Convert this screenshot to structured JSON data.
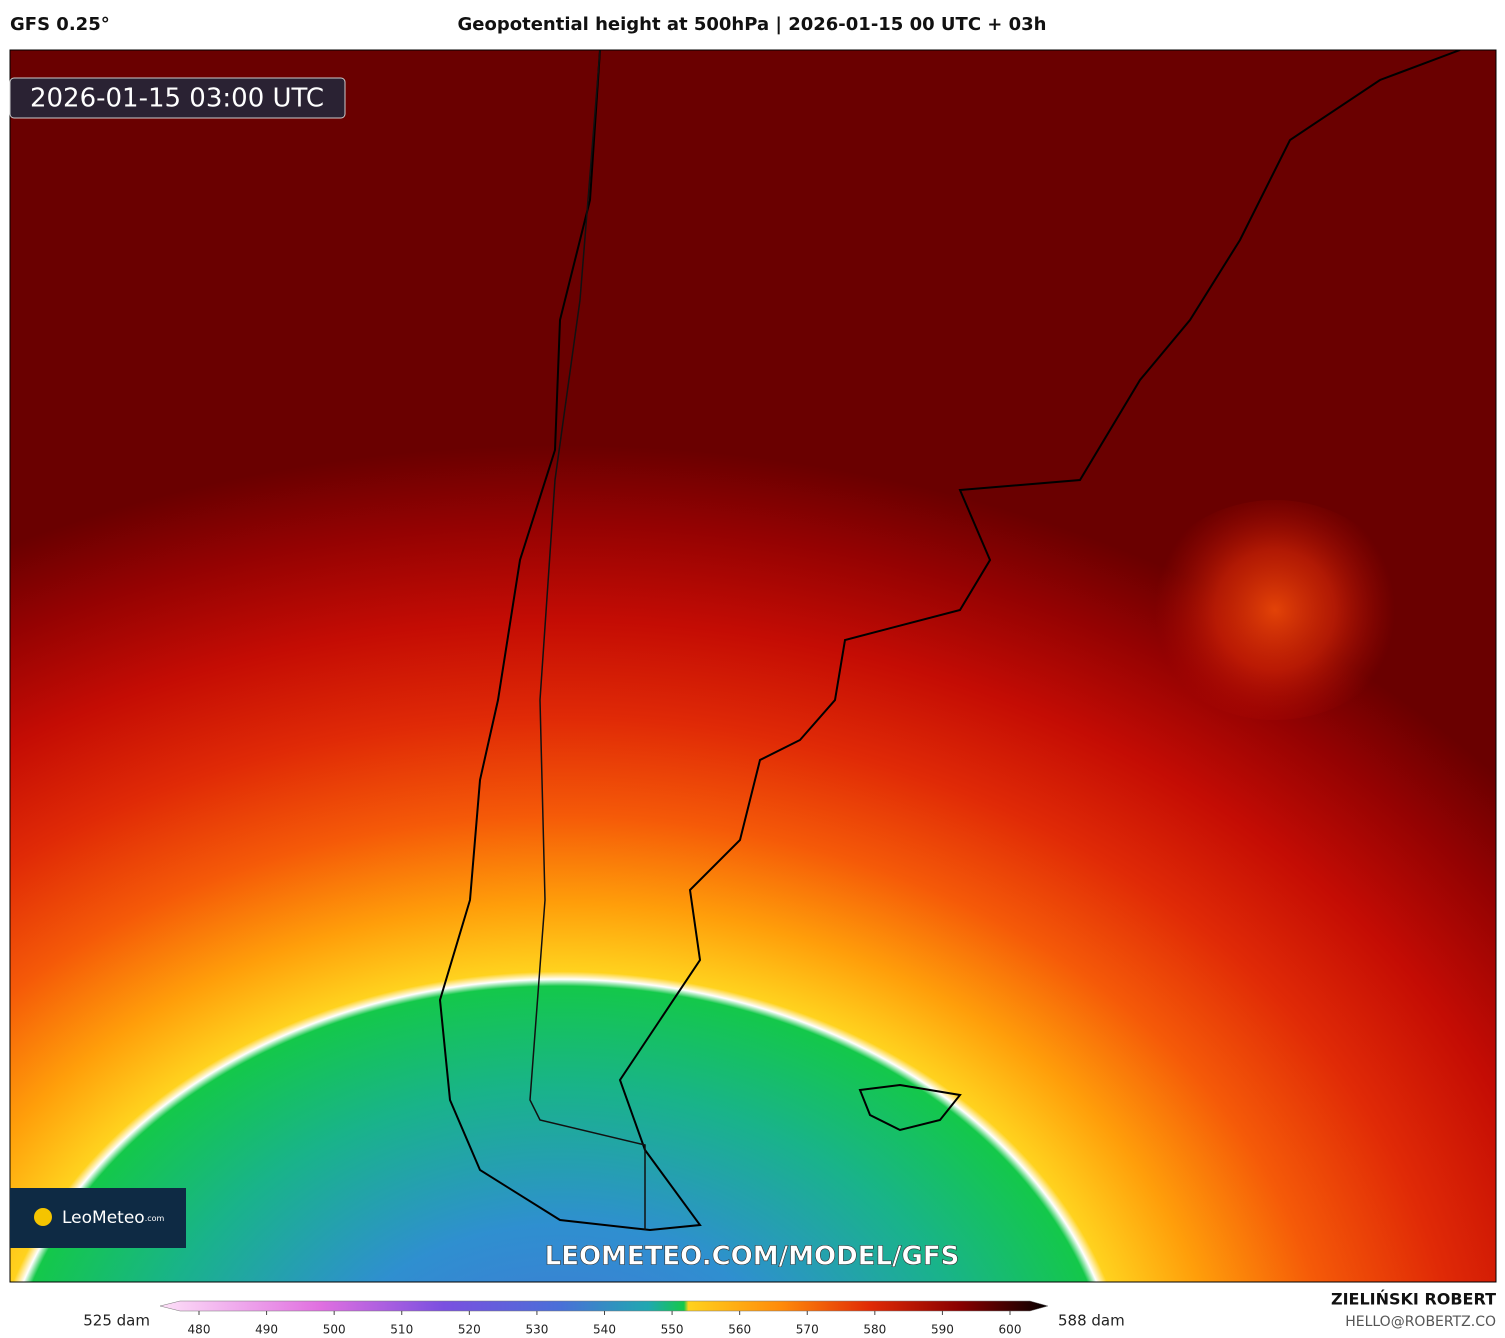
{
  "header": {
    "model": "GFS 0.25°",
    "title": "Geopotential height at 500hPa | 2026-01-15 00 UTC + 03h"
  },
  "map": {
    "valid_time": "2026-01-15 03:00 UTC",
    "logo": "LeoMeteo",
    "logo_suffix": ".com",
    "watermark": "LEOMETEO.COM/MODEL/GFS"
  },
  "colorbar": {
    "min_label": "525 dam",
    "max_label": "588 dam",
    "ticks": [
      480,
      490,
      500,
      510,
      520,
      530,
      540,
      550,
      560,
      570,
      580,
      590,
      600
    ]
  },
  "footer": {
    "author": "ZIELIŃSKI ROBERT",
    "email": "HELLO@ROBERTZ.CO"
  }
}
